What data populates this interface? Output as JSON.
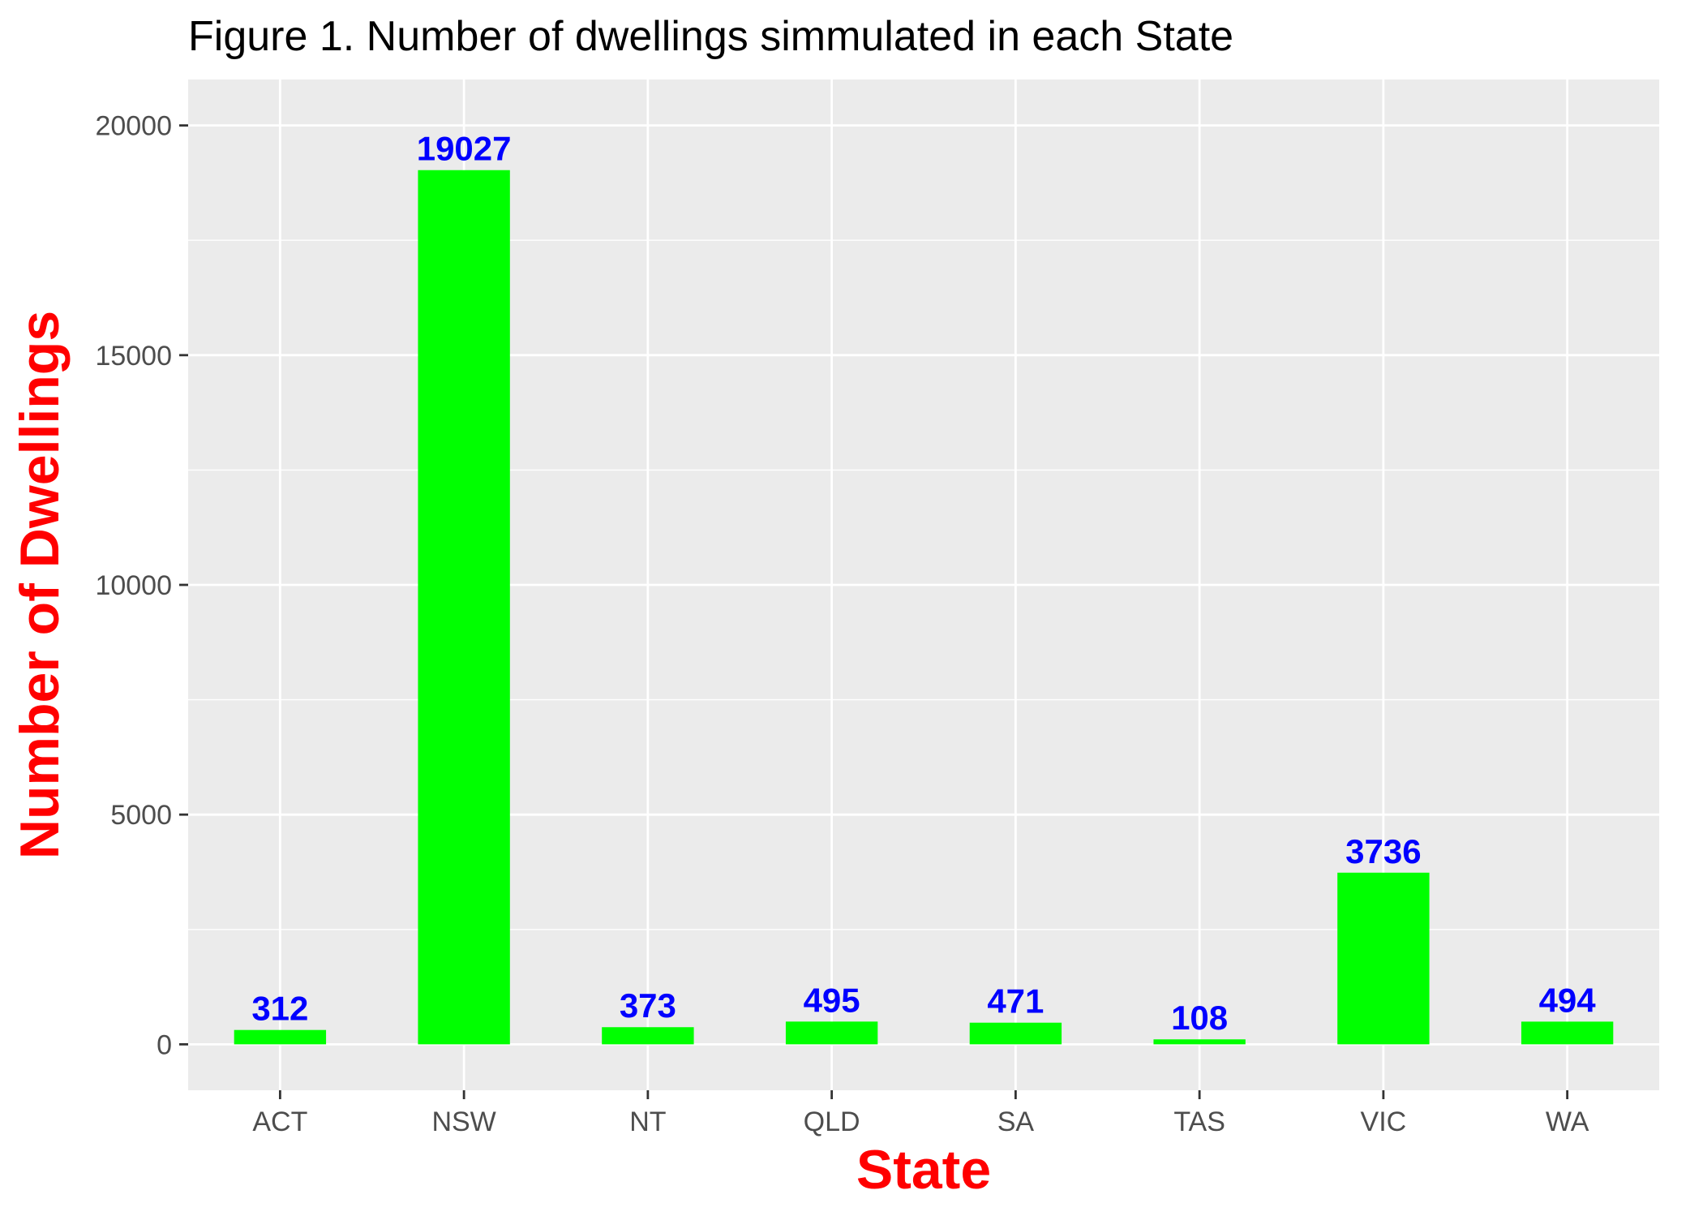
{
  "chart_data": {
    "type": "bar",
    "title": "Figure 1. Number of dwellings simmulated in each State",
    "xlabel": "State",
    "ylabel": "Number of Dwellings",
    "categories": [
      "ACT",
      "NSW",
      "NT",
      "QLD",
      "SA",
      "TAS",
      "VIC",
      "WA"
    ],
    "values": [
      312,
      19027,
      373,
      495,
      471,
      108,
      3736,
      494
    ],
    "data_labels": [
      "312",
      "19027",
      "373",
      "495",
      "471",
      "108",
      "3736",
      "494"
    ],
    "yticks": [
      0,
      5000,
      10000,
      15000,
      20000
    ],
    "ylim": [
      -1000,
      21000
    ],
    "grid": true,
    "legend": "none",
    "colors": {
      "bar": "#00ff00",
      "data_label": "#0000ff",
      "axis_title": "#ff0000",
      "panel": "#ebebeb",
      "grid": "#ffffff",
      "tick_text": "#4d4d4d",
      "title": "#000000"
    }
  }
}
